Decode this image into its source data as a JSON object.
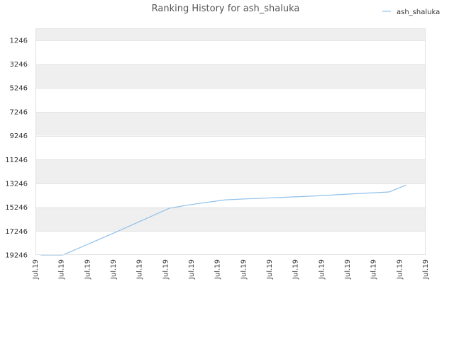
{
  "chart_data": {
    "type": "line",
    "title": "Ranking History for ash_shaluka",
    "xlabel": "",
    "ylabel": "",
    "y_reversed": true,
    "ylim": [
      19246,
      246
    ],
    "y_ticks": [
      1246,
      3246,
      5246,
      7246,
      9246,
      11246,
      13246,
      15246,
      17246,
      19246
    ],
    "y_tick_labels": [
      "1246",
      "3246",
      "5246",
      "7246",
      "9246",
      "11246",
      "13246",
      "15246",
      "17246",
      "19246"
    ],
    "x_tick_labels": [
      "Jul.19",
      "Jul.19",
      "Jul.19",
      "Jul.19",
      "Jul.19",
      "Jul.19",
      "Jul.19",
      "Jul.19",
      "Jul.19",
      "Jul.19",
      "Jul.19",
      "Jul.19",
      "Jul.19",
      "Jul.19",
      "Jul.19",
      "Jul.19"
    ],
    "x_range": [
      0,
      15
    ],
    "legend_position": "top-right",
    "grid": true,
    "series": [
      {
        "name": "ash_shaluka",
        "color": "#90c0ea",
        "x": [
          0.2,
          1.05,
          3.1,
          5.15,
          6.1,
          7.3,
          8.15,
          9.5,
          10.9,
          12.3,
          13.6,
          14.25
        ],
        "values": [
          19246,
          19246,
          17320,
          15320,
          14980,
          14620,
          14540,
          14410,
          14280,
          14110,
          13960,
          13380
        ]
      }
    ]
  }
}
